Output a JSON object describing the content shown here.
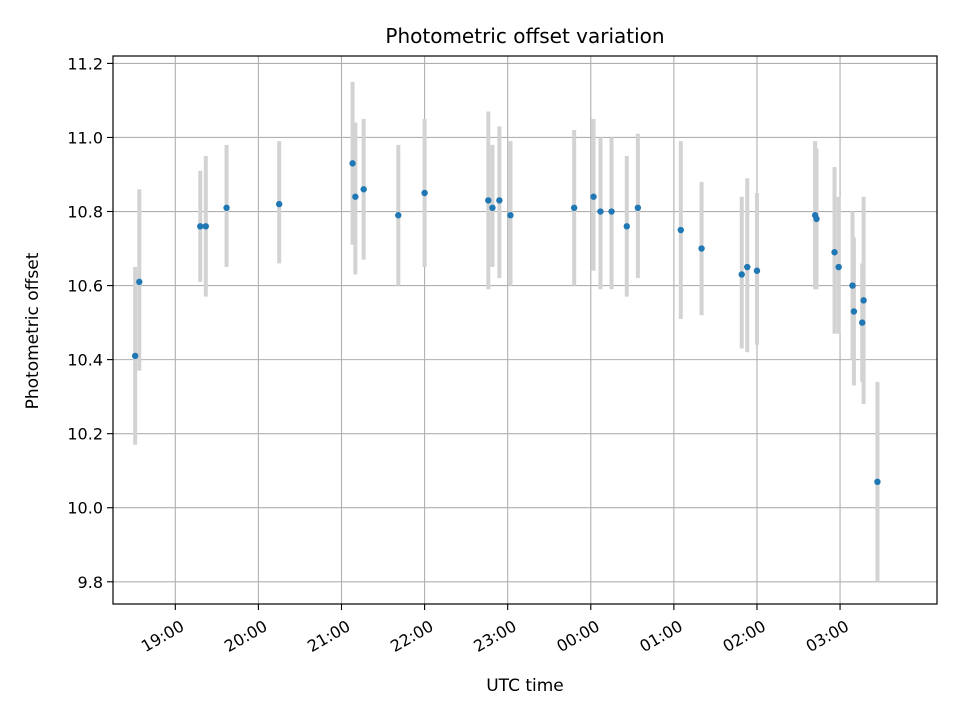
{
  "chart_data": {
    "type": "scatter",
    "title": "Photometric offset variation",
    "xlabel": "UTC time",
    "ylabel": "Photometric offset",
    "x_axis": "time",
    "x_range": [
      "18:15",
      "04:10"
    ],
    "x_ticks": [
      "19:00",
      "20:00",
      "21:00",
      "22:00",
      "23:00",
      "00:00",
      "01:00",
      "02:00",
      "03:00"
    ],
    "ylim": [
      9.74,
      11.22
    ],
    "y_ticks": [
      "9.8",
      "10.0",
      "10.2",
      "10.4",
      "10.6",
      "10.8",
      "11.0",
      "11.2"
    ],
    "grid": true,
    "marker_color": "#1f77b4",
    "errorbar_color": "#d3d3d3",
    "points": [
      {
        "t": "18:31",
        "y": 10.41,
        "lo": 10.17,
        "hi": 10.65
      },
      {
        "t": "18:34",
        "y": 10.61,
        "lo": 10.37,
        "hi": 10.86
      },
      {
        "t": "19:18",
        "y": 10.76,
        "lo": 10.61,
        "hi": 10.91
      },
      {
        "t": "19:22",
        "y": 10.76,
        "lo": 10.57,
        "hi": 10.95
      },
      {
        "t": "19:37",
        "y": 10.81,
        "lo": 10.65,
        "hi": 10.98
      },
      {
        "t": "20:15",
        "y": 10.82,
        "lo": 10.66,
        "hi": 10.99
      },
      {
        "t": "21:08",
        "y": 10.93,
        "lo": 10.71,
        "hi": 11.15
      },
      {
        "t": "21:10",
        "y": 10.84,
        "lo": 10.63,
        "hi": 11.04
      },
      {
        "t": "21:16",
        "y": 10.86,
        "lo": 10.67,
        "hi": 11.05
      },
      {
        "t": "21:41",
        "y": 10.79,
        "lo": 10.6,
        "hi": 10.98
      },
      {
        "t": "22:00",
        "y": 10.85,
        "lo": 10.65,
        "hi": 11.05
      },
      {
        "t": "22:46",
        "y": 10.83,
        "lo": 10.59,
        "hi": 11.07
      },
      {
        "t": "22:49",
        "y": 10.81,
        "lo": 10.65,
        "hi": 10.98
      },
      {
        "t": "22:54",
        "y": 10.83,
        "lo": 10.62,
        "hi": 11.03
      },
      {
        "t": "23:02",
        "y": 10.79,
        "lo": 10.6,
        "hi": 10.99
      },
      {
        "t": "23:48",
        "y": 10.81,
        "lo": 10.6,
        "hi": 11.02
      },
      {
        "t": "00:02",
        "y": 10.84,
        "lo": 10.64,
        "hi": 11.05
      },
      {
        "t": "00:07",
        "y": 10.8,
        "lo": 10.59,
        "hi": 11.0
      },
      {
        "t": "00:15",
        "y": 10.8,
        "lo": 10.59,
        "hi": 11.0
      },
      {
        "t": "00:26",
        "y": 10.76,
        "lo": 10.57,
        "hi": 10.95
      },
      {
        "t": "00:34",
        "y": 10.81,
        "lo": 10.62,
        "hi": 11.01
      },
      {
        "t": "01:05",
        "y": 10.75,
        "lo": 10.51,
        "hi": 10.99
      },
      {
        "t": "01:20",
        "y": 10.7,
        "lo": 10.52,
        "hi": 10.88
      },
      {
        "t": "01:49",
        "y": 10.63,
        "lo": 10.43,
        "hi": 10.84
      },
      {
        "t": "01:53",
        "y": 10.65,
        "lo": 10.42,
        "hi": 10.89
      },
      {
        "t": "02:00",
        "y": 10.64,
        "lo": 10.44,
        "hi": 10.85
      },
      {
        "t": "02:42",
        "y": 10.79,
        "lo": 10.59,
        "hi": 10.99
      },
      {
        "t": "02:43",
        "y": 10.78,
        "lo": 10.59,
        "hi": 10.97
      },
      {
        "t": "02:56",
        "y": 10.69,
        "lo": 10.47,
        "hi": 10.92
      },
      {
        "t": "02:59",
        "y": 10.65,
        "lo": 10.47,
        "hi": 10.84
      },
      {
        "t": "03:09",
        "y": 10.6,
        "lo": 10.4,
        "hi": 10.8
      },
      {
        "t": "03:10",
        "y": 10.53,
        "lo": 10.33,
        "hi": 10.73
      },
      {
        "t": "03:16",
        "y": 10.5,
        "lo": 10.34,
        "hi": 10.66
      },
      {
        "t": "03:17",
        "y": 10.56,
        "lo": 10.28,
        "hi": 10.84
      },
      {
        "t": "03:27",
        "y": 10.07,
        "lo": 9.8,
        "hi": 10.34
      }
    ]
  }
}
